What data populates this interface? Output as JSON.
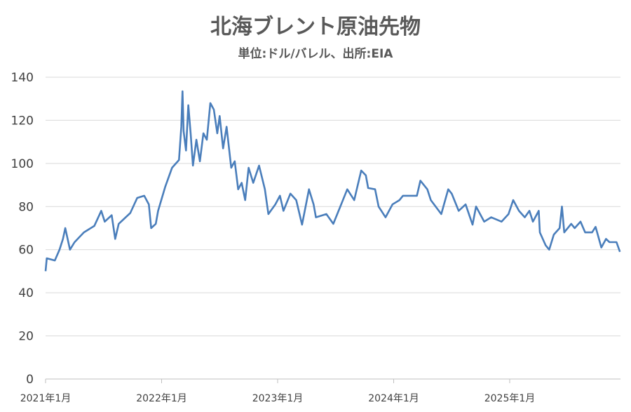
{
  "chart_data": {
    "type": "line",
    "title": "北海ブレント原油先物",
    "subtitle": "単位:ドル/バレル、出所:EIA",
    "xlabel": "",
    "ylabel": "",
    "ylim": [
      0,
      140
    ],
    "yticks": [
      0,
      20,
      40,
      60,
      80,
      100,
      120,
      140
    ],
    "xlim": [
      2021.0,
      2025.95
    ],
    "xticks": [
      {
        "value": 2021.0,
        "label": "2021年1月"
      },
      {
        "value": 2022.0,
        "label": "2022年1月"
      },
      {
        "value": 2023.0,
        "label": "2023年1月"
      },
      {
        "value": 2024.0,
        "label": "2024年1月"
      },
      {
        "value": 2025.0,
        "label": "2025年1月"
      }
    ],
    "grid": true,
    "line_color": "#4a7ebb",
    "series": [
      {
        "name": "北海ブレント原油先物",
        "x": [
          2021.0,
          2021.01,
          2021.08,
          2021.12,
          2021.15,
          2021.17,
          2021.21,
          2021.25,
          2021.33,
          2021.42,
          2021.48,
          2021.51,
          2021.57,
          2021.6,
          2021.63,
          2021.73,
          2021.79,
          2021.85,
          2021.89,
          2021.91,
          2021.95,
          2021.97,
          2022.03,
          2022.09,
          2022.15,
          2022.17,
          2022.18,
          2022.19,
          2022.21,
          2022.23,
          2022.25,
          2022.27,
          2022.3,
          2022.33,
          2022.36,
          2022.39,
          2022.42,
          2022.45,
          2022.48,
          2022.5,
          2022.53,
          2022.56,
          2022.6,
          2022.63,
          2022.66,
          2022.69,
          2022.72,
          2022.75,
          2022.79,
          2022.84,
          2022.89,
          2022.92,
          2022.98,
          2023.02,
          2023.05,
          2023.11,
          2023.16,
          2023.21,
          2023.27,
          2023.31,
          2023.33,
          2023.42,
          2023.48,
          2023.54,
          2023.6,
          2023.66,
          2023.72,
          2023.76,
          2023.78,
          2023.84,
          2023.87,
          2023.93,
          2023.99,
          2024.05,
          2024.08,
          2024.2,
          2024.23,
          2024.29,
          2024.32,
          2024.41,
          2024.47,
          2024.5,
          2024.56,
          2024.62,
          2024.68,
          2024.71,
          2024.78,
          2024.84,
          2024.93,
          2024.99,
          2025.03,
          2025.08,
          2025.13,
          2025.17,
          2025.2,
          2025.25,
          2025.26,
          2025.31,
          2025.34,
          2025.38,
          2025.43,
          2025.45,
          2025.47,
          2025.53,
          2025.56,
          2025.61,
          2025.65,
          2025.71,
          2025.74,
          2025.79,
          2025.83,
          2025.86,
          2025.92,
          2025.95
        ],
        "values": [
          50,
          56,
          55,
          60,
          65,
          70,
          60,
          63.5,
          68,
          71,
          78,
          73,
          76,
          65,
          72,
          77,
          84,
          85,
          81,
          70,
          72,
          78,
          89,
          98,
          101.6,
          117,
          133.5,
          115,
          106,
          127,
          114,
          99,
          111,
          101,
          114,
          111,
          128,
          125,
          114,
          122,
          107,
          117,
          98,
          101,
          88,
          91,
          83,
          98,
          91,
          99,
          88,
          76.5,
          81,
          85,
          78,
          86,
          83,
          71.6,
          88,
          81,
          75,
          76.5,
          72,
          80,
          88,
          83,
          96.7,
          94.5,
          88.6,
          88,
          80,
          75,
          81,
          83,
          85,
          85,
          92,
          88,
          83,
          76.5,
          88,
          86,
          78,
          81,
          71.6,
          80,
          73,
          75,
          73,
          76.5,
          83,
          78,
          75,
          78,
          73,
          78,
          68,
          62,
          60,
          67,
          70,
          80,
          68,
          72,
          70,
          73,
          68,
          68,
          70.6,
          61,
          65,
          63.5,
          63.5,
          59
        ]
      }
    ]
  }
}
